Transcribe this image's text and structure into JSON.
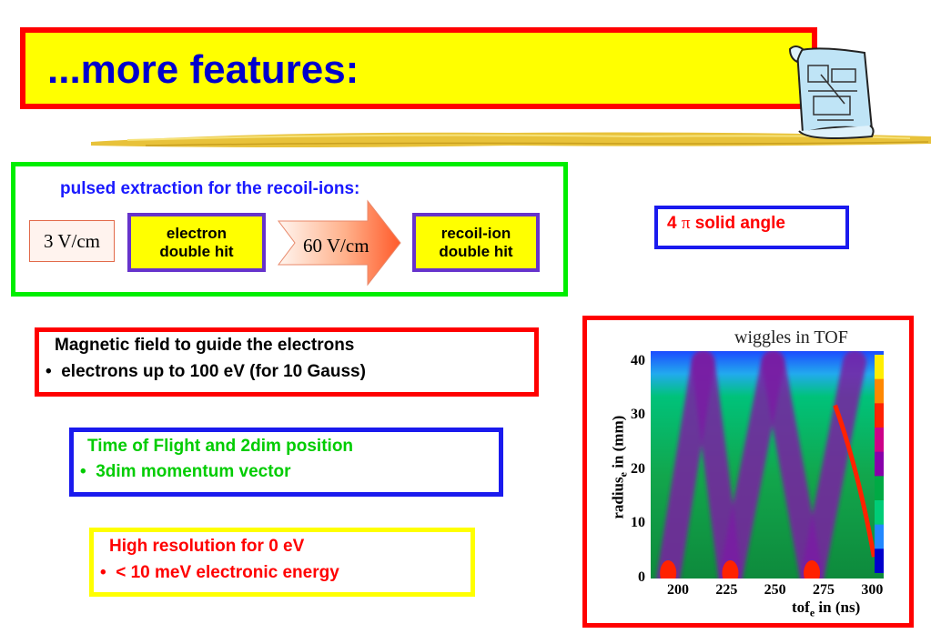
{
  "title": "...more features:",
  "extraction": {
    "heading": "pulsed extraction for the recoil-ions:",
    "field1": "3 V/cm",
    "box1_line1": "electron",
    "box1_line2": "double hit",
    "field2": "60 V/cm",
    "box2_line1": "recoil-ion",
    "box2_line2": "double hit"
  },
  "solid_angle": {
    "prefix": "4 ",
    "symbol": "π",
    "suffix": " solid angle"
  },
  "magnetic": {
    "line1": "Magnetic field to guide the electrons",
    "bullet": "•",
    "line2": "electrons up to 100 eV (for 10 Gauss)"
  },
  "tof_position": {
    "line1": "Time of Flight and 2dim position",
    "bullet": "•",
    "line2": "3dim momentum vector"
  },
  "resolution": {
    "line1": "High resolution for 0 eV",
    "bullet": "•",
    "line2": "< 10 meV electronic energy"
  },
  "colors": {
    "title_fill": "#ffff00",
    "title_border": "#ff0000",
    "title_text": "#0000cc"
  },
  "icons": [
    "scroll-blueprint-icon",
    "right-arrow-icon"
  ],
  "chart_data": {
    "type": "heatmap",
    "title": "wiggles in TOF",
    "xlabel_main": "tof",
    "xlabel_sub": "e",
    "xlabel_rest": " in (ns)",
    "ylabel_main": "radius",
    "ylabel_sub": "e",
    "ylabel_rest": " in (mm)",
    "x_ticks": [
      "200",
      "225",
      "250",
      "275",
      "300"
    ],
    "y_ticks": [
      "0",
      "10",
      "20",
      "30",
      "40"
    ],
    "xlim": [
      185,
      305
    ],
    "ylim": [
      0,
      42
    ],
    "nodes_x": [
      194,
      226,
      268
    ],
    "peaks_x": [
      212,
      248,
      290
    ],
    "colorbar": [
      "#ffee00",
      "#ff8800",
      "#ff2200",
      "#cc0088",
      "#8800aa",
      "#00aa44",
      "#00cc77",
      "#2288ff",
      "#0000cc"
    ]
  }
}
